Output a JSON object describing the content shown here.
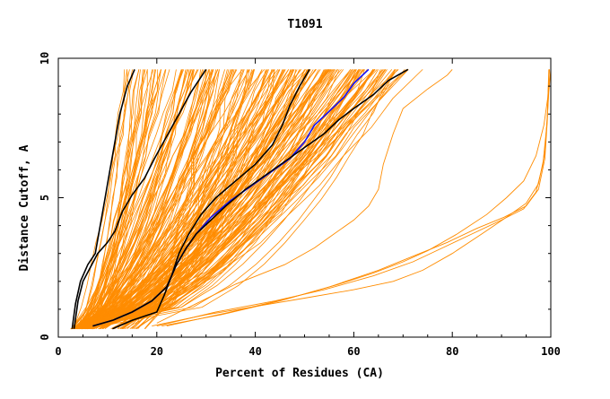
{
  "chart_data": {
    "type": "line",
    "title": "T1091",
    "xlabel": "Percent of Residues (CA)",
    "ylabel": "Distance Cutoff, A",
    "xlim": [
      0,
      100
    ],
    "ylim": [
      0,
      10
    ],
    "x_ticks": [
      0,
      20,
      40,
      60,
      80,
      100
    ],
    "y_ticks": [
      0,
      5,
      10
    ],
    "grid": false,
    "legend": "none",
    "colors": {
      "background_series": "#ff8c00",
      "highlight_black": "#000000",
      "highlight_blue": "#1010ff",
      "frame": "#000000"
    },
    "highlight_series": [
      {
        "color": "#000000",
        "points": [
          [
            2.8,
            0.3
          ],
          [
            3.5,
            1.2
          ],
          [
            4.5,
            2.0
          ],
          [
            6,
            2.6
          ],
          [
            7.5,
            3.0
          ],
          [
            8.5,
            4.0
          ],
          [
            9.5,
            5.0
          ],
          [
            10.5,
            6.0
          ],
          [
            11.5,
            7.0
          ],
          [
            12.5,
            8.0
          ],
          [
            14,
            9.0
          ],
          [
            15.5,
            9.6
          ]
        ]
      },
      {
        "color": "#000000",
        "points": [
          [
            3.2,
            0.3
          ],
          [
            4,
            1.3
          ],
          [
            5,
            2.0
          ],
          [
            6.5,
            2.5
          ],
          [
            8,
            3.0
          ],
          [
            10,
            3.4
          ],
          [
            11.5,
            3.8
          ],
          [
            13,
            4.5
          ],
          [
            15,
            5.1
          ],
          [
            17.5,
            5.7
          ],
          [
            19.5,
            6.4
          ],
          [
            22,
            7.2
          ],
          [
            24.5,
            8.0
          ],
          [
            27,
            8.8
          ],
          [
            30,
            9.6
          ]
        ]
      },
      {
        "color": "#000000",
        "points": [
          [
            11,
            0.3
          ],
          [
            15,
            0.6
          ],
          [
            20,
            0.9
          ],
          [
            21.5,
            1.5
          ],
          [
            23,
            2.2
          ],
          [
            24.5,
            3.0
          ],
          [
            26.5,
            3.7
          ],
          [
            29,
            4.4
          ],
          [
            32,
            5.0
          ],
          [
            36,
            5.6
          ],
          [
            40,
            6.2
          ],
          [
            43.5,
            6.9
          ],
          [
            45.5,
            7.6
          ],
          [
            47,
            8.3
          ],
          [
            49,
            9.0
          ],
          [
            51,
            9.6
          ]
        ]
      },
      {
        "color": "#1010ff",
        "points": [
          [
            7,
            0.4
          ],
          [
            11,
            0.6
          ],
          [
            15,
            0.9
          ],
          [
            19,
            1.3
          ],
          [
            22,
            1.8
          ],
          [
            24,
            2.6
          ],
          [
            26,
            3.2
          ],
          [
            28,
            3.7
          ],
          [
            31,
            4.3
          ],
          [
            35,
            4.9
          ],
          [
            39,
            5.4
          ],
          [
            43,
            5.9
          ],
          [
            47,
            6.4
          ],
          [
            50,
            7.0
          ],
          [
            52,
            7.6
          ],
          [
            55,
            8.1
          ],
          [
            58,
            8.6
          ],
          [
            60,
            9.1
          ],
          [
            63,
            9.6
          ]
        ]
      },
      {
        "color": "#000000",
        "points": [
          [
            7,
            0.4
          ],
          [
            11,
            0.6
          ],
          [
            15,
            0.9
          ],
          [
            19,
            1.3
          ],
          [
            22,
            1.8
          ],
          [
            24,
            2.6
          ],
          [
            26,
            3.2
          ],
          [
            28,
            3.7
          ],
          [
            31,
            4.2
          ],
          [
            34,
            4.7
          ],
          [
            38,
            5.3
          ],
          [
            42,
            5.8
          ],
          [
            46,
            6.3
          ],
          [
            50,
            6.8
          ],
          [
            54,
            7.3
          ],
          [
            57,
            7.8
          ],
          [
            60,
            8.2
          ],
          [
            64,
            8.7
          ],
          [
            67,
            9.2
          ],
          [
            71,
            9.6
          ]
        ]
      }
    ],
    "outlier_series": [
      {
        "points": [
          [
            19,
            0.4
          ],
          [
            30,
            0.8
          ],
          [
            40,
            1.1
          ],
          [
            50,
            1.4
          ],
          [
            60,
            1.7
          ],
          [
            68,
            2.0
          ],
          [
            74,
            2.4
          ],
          [
            80,
            3.0
          ],
          [
            86,
            3.7
          ],
          [
            91,
            4.3
          ],
          [
            95,
            4.8
          ],
          [
            97.5,
            5.5
          ],
          [
            98.8,
            6.6
          ],
          [
            99.3,
            8.0
          ],
          [
            99.6,
            9.6
          ]
        ]
      },
      {
        "points": [
          [
            20,
            0.4
          ],
          [
            32,
            0.9
          ],
          [
            44,
            1.3
          ],
          [
            54,
            1.7
          ],
          [
            64,
            2.2
          ],
          [
            72,
            2.7
          ],
          [
            78,
            3.2
          ],
          [
            84,
            3.7
          ],
          [
            90,
            4.2
          ],
          [
            94.5,
            4.6
          ],
          [
            97,
            5.2
          ],
          [
            98.4,
            6.2
          ],
          [
            99.2,
            7.6
          ],
          [
            99.6,
            8.8
          ],
          [
            100,
            9.6
          ]
        ]
      },
      {
        "points": [
          [
            21,
            0.4
          ],
          [
            33,
            0.8
          ],
          [
            45,
            1.3
          ],
          [
            55,
            1.8
          ],
          [
            65,
            2.4
          ],
          [
            72,
            2.9
          ],
          [
            79,
            3.4
          ],
          [
            85,
            3.9
          ],
          [
            90.5,
            4.3
          ],
          [
            95,
            4.7
          ],
          [
            97.5,
            5.3
          ],
          [
            98.8,
            6.4
          ],
          [
            99.3,
            7.8
          ],
          [
            99.7,
            9.6
          ]
        ]
      },
      {
        "points": [
          [
            22,
            0.4
          ],
          [
            35,
            0.9
          ],
          [
            47,
            1.4
          ],
          [
            57,
            1.9
          ],
          [
            64,
            2.3
          ],
          [
            70,
            2.7
          ],
          [
            75,
            3.1
          ],
          [
            81,
            3.7
          ],
          [
            87,
            4.4
          ],
          [
            91,
            5.0
          ],
          [
            94.5,
            5.6
          ],
          [
            97,
            6.5
          ],
          [
            98.6,
            7.6
          ],
          [
            99.4,
            8.6
          ],
          [
            99.7,
            9.6
          ]
        ]
      },
      {
        "points": [
          [
            20,
            0.5
          ],
          [
            28,
            1.2
          ],
          [
            36,
            1.9
          ],
          [
            46,
            2.6
          ],
          [
            52,
            3.2
          ],
          [
            56,
            3.7
          ],
          [
            60,
            4.2
          ],
          [
            63,
            4.7
          ],
          [
            65,
            5.3
          ],
          [
            66,
            6.2
          ],
          [
            68,
            7.3
          ],
          [
            70,
            8.2
          ],
          [
            75,
            8.9
          ],
          [
            79,
            9.4
          ],
          [
            80,
            9.6
          ]
        ]
      }
    ]
  }
}
